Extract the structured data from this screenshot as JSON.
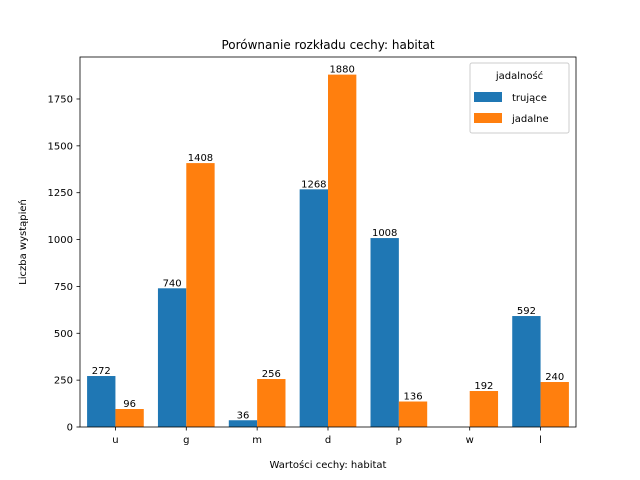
{
  "chart_data": {
    "type": "bar",
    "title": "Porównanie rozkładu cechy: habitat",
    "xlabel": "Wartości cechy: habitat",
    "ylabel": "Liczba wystąpień",
    "categories": [
      "u",
      "g",
      "m",
      "d",
      "p",
      "w",
      "l"
    ],
    "series": [
      {
        "name": "trujące",
        "values": [
          272,
          740,
          36,
          1268,
          1008,
          0,
          592
        ],
        "color": "#1f77b4"
      },
      {
        "name": "jadalne",
        "values": [
          96,
          1408,
          256,
          1880,
          136,
          192,
          240
        ],
        "color": "#ff7f0e"
      }
    ],
    "ylim": [
      0,
      1974
    ],
    "yticks": [
      0,
      250,
      500,
      750,
      1000,
      1250,
      1500,
      1750
    ],
    "legend": {
      "title": "jadalność",
      "placement": "top-right"
    },
    "grid": false
  }
}
